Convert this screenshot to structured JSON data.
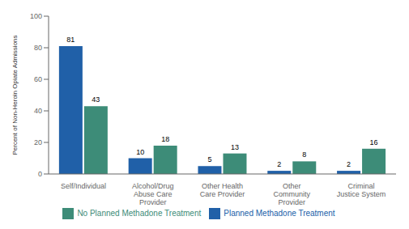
{
  "chart_data": {
    "type": "bar",
    "categories": [
      "Self/Individual",
      "Alcohol/Drug\nAbuse Care\nProvider",
      "Other Health\nCare Provider",
      "Other\nCommunity\nProvider",
      "Criminal\nJustice System"
    ],
    "series": [
      {
        "name": "Planned Methadone Treatment",
        "color": "#2060a8",
        "values": [
          81,
          10,
          5,
          2,
          2
        ]
      },
      {
        "name": "No Planned Methadone Treatment",
        "color": "#3d8c78",
        "values": [
          43,
          18,
          13,
          8,
          16
        ]
      }
    ],
    "ylabel": "Percent of Non-Heroin Opiate Admissions",
    "ylim": [
      0,
      100
    ],
    "yticks": [
      0,
      20,
      40,
      60,
      80,
      100
    ],
    "grid": false,
    "data_labels": true,
    "legend": "bottom"
  }
}
